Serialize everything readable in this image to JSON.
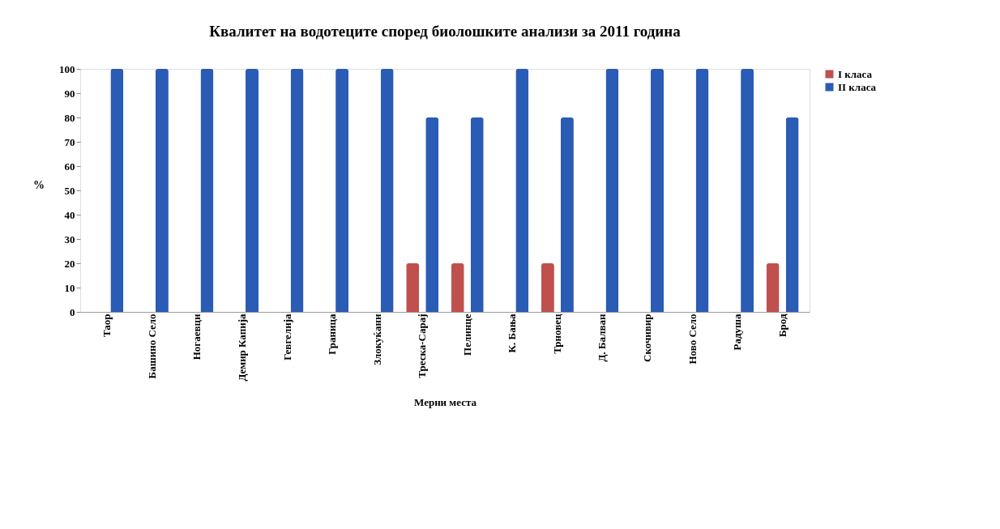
{
  "chart_data": {
    "type": "bar",
    "title": "Квалитет на водотеците според биолошките анализи за 2011 година",
    "xlabel": "Мерни места",
    "ylabel": "%",
    "categories": [
      "Таор",
      "Башино Село",
      "Ногаевци",
      "Демир Капија",
      "Гевгелија",
      "Граница",
      "Злокуќани",
      "Треска-Сарај",
      "Пелинце",
      "К. Бања",
      "Трновец",
      "Д. Балван",
      "Скочивир",
      "Ново Село",
      "Радуша",
      "Брод"
    ],
    "series": [
      {
        "name": "I класа",
        "color": "#c0504d",
        "values": [
          0,
          0,
          0,
          0,
          0,
          0,
          0,
          20,
          20,
          0,
          20,
          0,
          0,
          0,
          0,
          20
        ]
      },
      {
        "name": "II класа",
        "color": "#2a5bb5",
        "values": [
          100,
          100,
          100,
          100,
          100,
          100,
          100,
          80,
          80,
          100,
          80,
          100,
          100,
          100,
          100,
          80
        ]
      }
    ],
    "ylim": [
      0,
      100
    ],
    "yticks": [
      0,
      10,
      20,
      30,
      40,
      50,
      60,
      70,
      80,
      90,
      100
    ],
    "grid": false,
    "legend": "right"
  }
}
